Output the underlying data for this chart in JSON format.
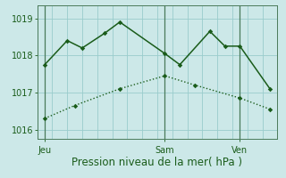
{
  "background_color": "#cce8e8",
  "line_color": "#1a5c1a",
  "ylim": [
    1015.75,
    1019.35
  ],
  "yticks": [
    1016,
    1017,
    1018,
    1019
  ],
  "day_labels": [
    "Jeu",
    "Sam",
    "Ven"
  ],
  "day_positions": [
    0.5,
    8.5,
    13.5
  ],
  "vline_x": [
    0.5,
    8.5,
    13.5
  ],
  "line1_x": [
    0.5,
    2.0,
    3.0,
    4.5,
    5.5,
    8.5,
    9.5,
    11.5,
    12.5,
    13.5,
    15.5
  ],
  "line1_y": [
    1017.75,
    1018.4,
    1018.2,
    1018.6,
    1018.9,
    1018.05,
    1017.75,
    1018.65,
    1018.25,
    1018.25,
    1017.1
  ],
  "line2_x": [
    0.5,
    2.5,
    5.5,
    8.5,
    10.5,
    13.5,
    15.5
  ],
  "line2_y": [
    1016.3,
    1016.65,
    1017.1,
    1017.45,
    1017.2,
    1016.85,
    1016.55
  ],
  "grid_color": "#99cccc",
  "xlabel": "Pression niveau de la mer( hPa )",
  "font_size_xlabel": 8.5,
  "font_size_ticks": 7,
  "xlim": [
    0,
    16
  ]
}
